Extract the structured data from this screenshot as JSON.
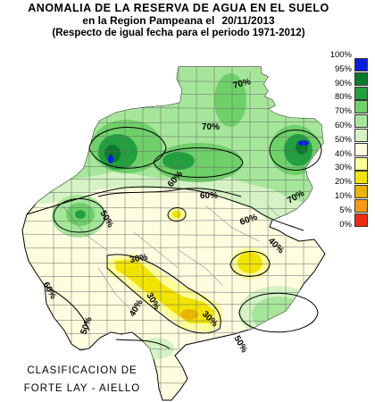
{
  "title": {
    "line1": "ANOMALIA DE LA RESERVA DE AGUA EN EL SUELO",
    "line2": "en la Region Pampeana el",
    "date": "20/11/2013",
    "line3": "(Respecto de igual fecha para el periodo 1971-2012)"
  },
  "legend": {
    "items": [
      {
        "label": "100%",
        "color": "#0b1ee0"
      },
      {
        "label": "95%",
        "color": "#0a7a2a"
      },
      {
        "label": "90%",
        "color": "#22a040"
      },
      {
        "label": "80%",
        "color": "#6fd06a"
      },
      {
        "label": "70%",
        "color": "#a6e69a"
      },
      {
        "label": "60%",
        "color": "#d4f2c4"
      },
      {
        "label": "50%",
        "color": "#fffde0"
      },
      {
        "label": "40%",
        "color": "#ffff99"
      },
      {
        "label": "30%",
        "color": "#f2e400"
      },
      {
        "label": "20%",
        "color": "#e8b400"
      },
      {
        "label": "10%",
        "color": "#f59a16"
      },
      {
        "label": "5%",
        "color": "#ef2a14"
      },
      {
        "label": "0%",
        "color": "#ffffff"
      }
    ]
  },
  "map_labels": {
    "l70a": "70%",
    "l70b": "70%",
    "l70c": "70%",
    "l60a": "60%",
    "l60b": "60%",
    "l60c": "60%",
    "l50a": "50%",
    "l50b": "50%",
    "l50c": "50%",
    "l40a": "40%",
    "l40b": "40%",
    "l30a": "30%",
    "l30b": "30%",
    "l30c": "30%",
    "l60d": "60%"
  },
  "credit": {
    "line1": "CLASIFICACION DE",
    "line2": "FORTE LAY - AIELLO"
  }
}
